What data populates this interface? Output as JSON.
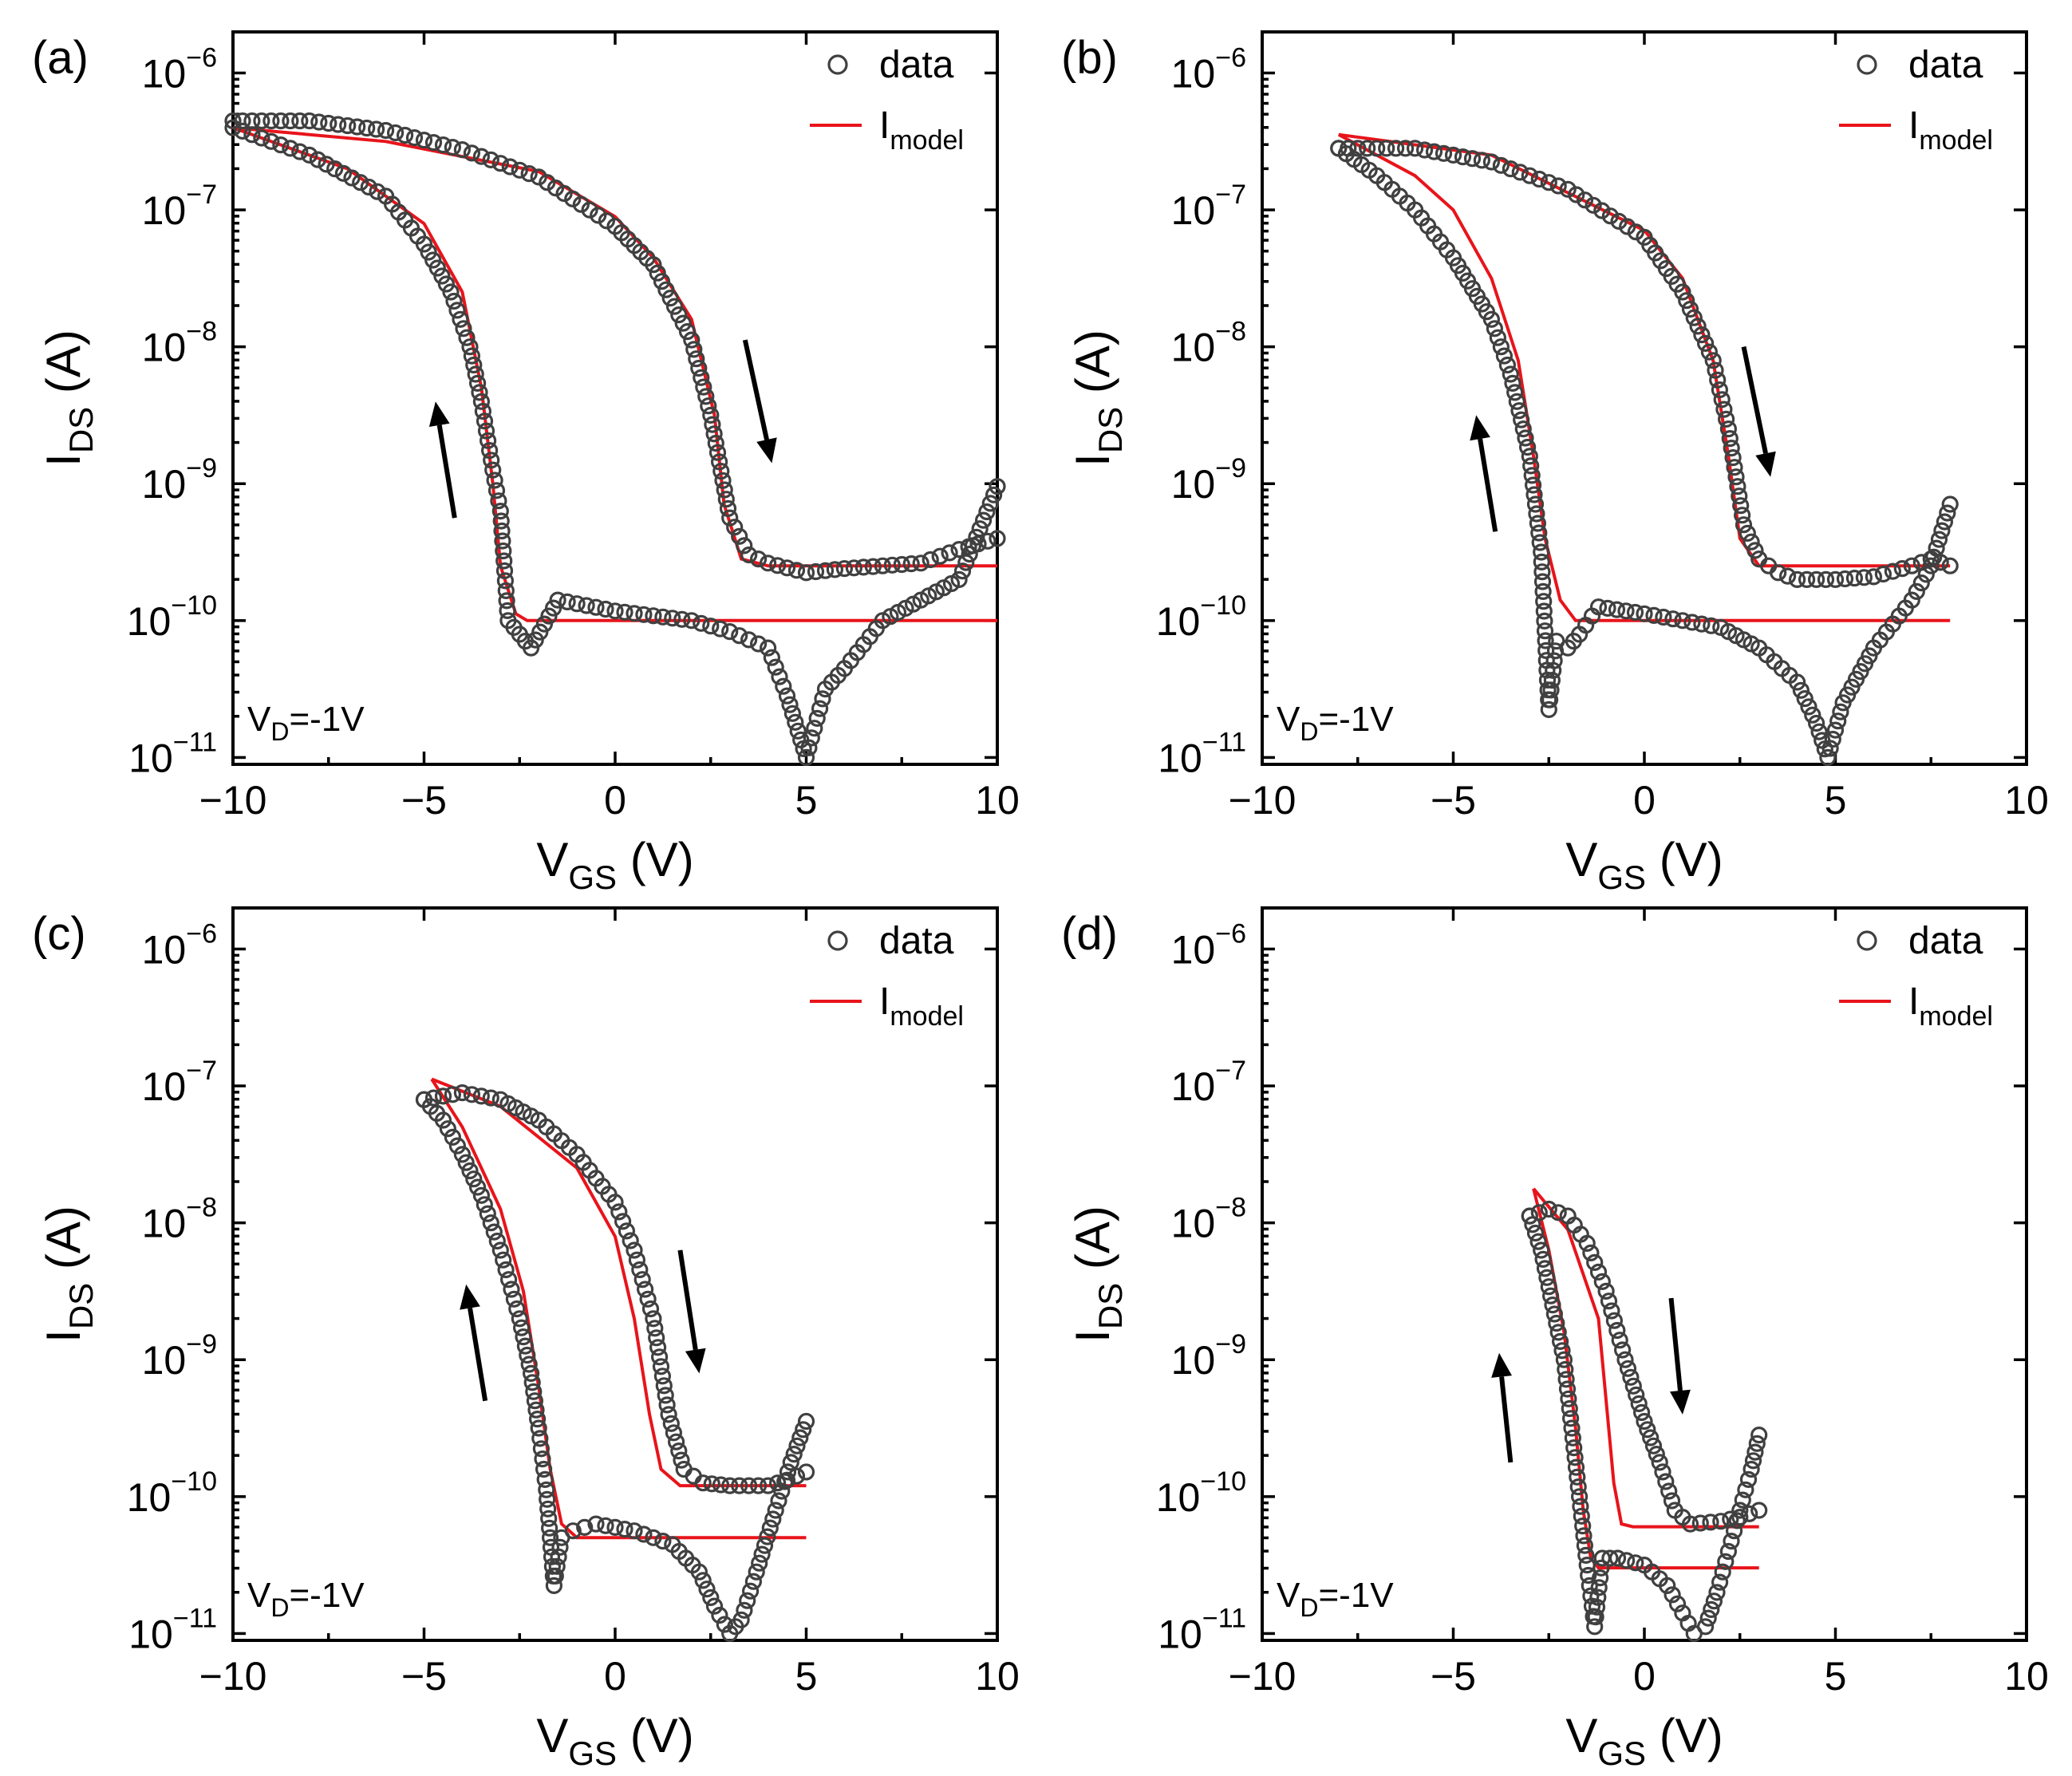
{
  "figure": {
    "background": "#ffffff"
  },
  "chart_data": [
    {
      "panel": "(a)",
      "type": "scatter",
      "title": "",
      "xlabel": "V",
      "xlabel_sub": "GS",
      "xlabel_unit": " (V)",
      "ylabel": "I",
      "ylabel_sub": "DS",
      "ylabel_unit": " (A)",
      "xlim": [
        -10,
        10
      ],
      "ylim_log10": [
        -11.05,
        -5.7
      ],
      "x_ticks": [
        -10,
        -5,
        0,
        5,
        10
      ],
      "x_tick_labels": [
        "−10",
        "−5",
        "0",
        "5",
        "10"
      ],
      "y_tick_exponents": [
        -6,
        -7,
        -8,
        -9,
        -10,
        -11
      ],
      "y_tick_labels": [
        {
          "base": "10",
          "exp": "−6"
        },
        {
          "base": "10",
          "exp": "−7"
        },
        {
          "base": "10",
          "exp": "−8"
        },
        {
          "base": "10",
          "exp": "−9"
        },
        {
          "base": "10",
          "exp": "−10"
        },
        {
          "base": "10",
          "exp": "−11"
        }
      ],
      "annotation": {
        "text": "V",
        "sub": "D",
        "rest": "=-1V"
      },
      "legend": {
        "data": "data",
        "model": "I",
        "model_sub": "model",
        "placement": "top-right"
      },
      "colors": {
        "data": "#404040",
        "model": "#e8141b"
      },
      "arrows": [
        {
          "direction": "up",
          "from": [
            -4.2,
            -9.25
          ],
          "to": [
            -4.7,
            -8.4
          ]
        },
        {
          "direction": "down",
          "from": [
            3.4,
            -7.95
          ],
          "to": [
            4.1,
            -8.85
          ]
        }
      ],
      "series": [
        {
          "name": "data (forward sweep)",
          "style": "circle",
          "x": [
            -10,
            -8,
            -6,
            -4,
            -2,
            0,
            1,
            2,
            2.5,
            3,
            3.5,
            4,
            5,
            6,
            7,
            8,
            9,
            10
          ],
          "log10_y": [
            -6.35,
            -6.35,
            -6.42,
            -6.56,
            -6.76,
            -7.12,
            -7.4,
            -7.95,
            -8.5,
            -9.25,
            -9.52,
            -9.58,
            -9.65,
            -9.62,
            -9.6,
            -9.58,
            -9.48,
            -9.4
          ]
        },
        {
          "name": "data (backward sweep)",
          "style": "circle",
          "x": [
            -10,
            -8,
            -6,
            -5,
            -4.3,
            -3.8,
            -3.5,
            -3.2,
            -3.0,
            -2.8,
            -2.5,
            -2.2,
            -1.5,
            0,
            2,
            3,
            4,
            4.5,
            5,
            5.5,
            6,
            7,
            8,
            9,
            10
          ],
          "log10_y": [
            -6.4,
            -6.6,
            -6.9,
            -7.25,
            -7.6,
            -8.0,
            -8.4,
            -8.9,
            -9.2,
            -10.0,
            -10.1,
            -10.2,
            -9.85,
            -9.93,
            -10.0,
            -10.08,
            -10.2,
            -10.55,
            -11.0,
            -10.5,
            -10.35,
            -10.0,
            -9.85,
            -9.7,
            -9.02
          ]
        },
        {
          "name": "I model (forward)",
          "style": "line",
          "x": [
            -10,
            -6,
            -2,
            0,
            1,
            2,
            2.6,
            2.85,
            3.3,
            4,
            10
          ],
          "log10_y": [
            -6.4,
            -6.5,
            -6.72,
            -7.05,
            -7.35,
            -7.8,
            -8.5,
            -9.15,
            -9.55,
            -9.6,
            -9.6
          ]
        },
        {
          "name": "I model (backward)",
          "style": "line",
          "x": [
            -10,
            -7,
            -5,
            -4,
            -3.5,
            -3.2,
            -3.0,
            -2.6,
            -2.3,
            0,
            10
          ],
          "log10_y": [
            -6.4,
            -6.7,
            -7.1,
            -7.6,
            -8.3,
            -9.0,
            -9.6,
            -9.95,
            -10.0,
            -10.0,
            -10.0
          ]
        }
      ]
    },
    {
      "panel": "(b)",
      "type": "scatter",
      "title": "",
      "xlabel": "V",
      "xlabel_sub": "GS",
      "xlabel_unit": " (V)",
      "ylabel": "I",
      "ylabel_sub": "DS",
      "ylabel_unit": " (A)",
      "xlim": [
        -10,
        10
      ],
      "ylim_log10": [
        -11.05,
        -5.7
      ],
      "x_ticks": [
        -10,
        -5,
        0,
        5,
        10
      ],
      "x_tick_labels": [
        "−10",
        "−5",
        "0",
        "5",
        "10"
      ],
      "y_tick_exponents": [
        -6,
        -7,
        -8,
        -9,
        -10,
        -11
      ],
      "y_tick_labels": [
        {
          "base": "10",
          "exp": "−6"
        },
        {
          "base": "10",
          "exp": "−7"
        },
        {
          "base": "10",
          "exp": "−8"
        },
        {
          "base": "10",
          "exp": "−9"
        },
        {
          "base": "10",
          "exp": "−10"
        },
        {
          "base": "10",
          "exp": "−11"
        }
      ],
      "annotation": {
        "text": "V",
        "sub": "D",
        "rest": "=-1V"
      },
      "legend": {
        "data": "data",
        "model": "I",
        "model_sub": "model",
        "placement": "top-right"
      },
      "colors": {
        "data": "#404040",
        "model": "#e8141b"
      },
      "arrows": [
        {
          "direction": "up",
          "from": [
            -3.9,
            -9.35
          ],
          "to": [
            -4.4,
            -8.5
          ]
        },
        {
          "direction": "down",
          "from": [
            2.6,
            -8.0
          ],
          "to": [
            3.3,
            -8.95
          ]
        }
      ],
      "series": [
        {
          "name": "data (forward sweep)",
          "style": "circle",
          "x": [
            -8,
            -6,
            -4,
            -2,
            0,
            1,
            1.8,
            2.2,
            2.6,
            3,
            3.5,
            4,
            5,
            6,
            7,
            7.5,
            8
          ],
          "log10_y": [
            -6.55,
            -6.55,
            -6.65,
            -6.85,
            -7.2,
            -7.6,
            -8.1,
            -8.6,
            -9.3,
            -9.55,
            -9.65,
            -9.7,
            -9.7,
            -9.68,
            -9.6,
            -9.55,
            -9.6
          ]
        },
        {
          "name": "data (backward sweep)",
          "style": "circle",
          "x": [
            -8,
            -7,
            -6,
            -5,
            -4,
            -3.5,
            -3.0,
            -2.7,
            -2.5,
            -2.3,
            -2.0,
            -1.7,
            -1.2,
            0,
            2,
            3,
            4,
            4.5,
            4.8,
            5.2,
            6,
            7,
            7.5,
            8
          ],
          "log10_y": [
            -6.55,
            -6.75,
            -7.0,
            -7.35,
            -7.8,
            -8.2,
            -8.8,
            -9.5,
            -10.65,
            -10.15,
            -10.2,
            -10.1,
            -9.9,
            -9.95,
            -10.05,
            -10.2,
            -10.45,
            -10.75,
            -11.0,
            -10.6,
            -10.2,
            -9.85,
            -9.6,
            -9.15
          ]
        },
        {
          "name": "I model (forward)",
          "style": "line",
          "x": [
            -8,
            -4,
            0,
            1,
            1.8,
            2.2,
            2.5,
            3,
            8
          ],
          "log10_y": [
            -6.45,
            -6.6,
            -7.15,
            -7.5,
            -8.1,
            -8.8,
            -9.4,
            -9.6,
            -9.6
          ]
        },
        {
          "name": "I model (backward)",
          "style": "line",
          "x": [
            -8,
            -6,
            -5,
            -4,
            -3.3,
            -2.9,
            -2.6,
            -2.2,
            -1.8,
            0,
            8
          ],
          "log10_y": [
            -6.45,
            -6.75,
            -7.0,
            -7.5,
            -8.1,
            -8.8,
            -9.4,
            -9.85,
            -10.0,
            -10.0,
            -10.0
          ]
        }
      ]
    },
    {
      "panel": "(c)",
      "type": "scatter",
      "title": "",
      "xlabel": "V",
      "xlabel_sub": "GS",
      "xlabel_unit": " (V)",
      "ylabel": "I",
      "ylabel_sub": "DS",
      "ylabel_unit": " (A)",
      "xlim": [
        -10,
        10
      ],
      "ylim_log10": [
        -11.05,
        -5.7
      ],
      "x_ticks": [
        -10,
        -5,
        0,
        5,
        10
      ],
      "x_tick_labels": [
        "−10",
        "−5",
        "0",
        "5",
        "10"
      ],
      "y_tick_exponents": [
        -6,
        -7,
        -8,
        -9,
        -10,
        -11
      ],
      "y_tick_labels": [
        {
          "base": "10",
          "exp": "−6"
        },
        {
          "base": "10",
          "exp": "−7"
        },
        {
          "base": "10",
          "exp": "−8"
        },
        {
          "base": "10",
          "exp": "−9"
        },
        {
          "base": "10",
          "exp": "−10"
        },
        {
          "base": "10",
          "exp": "−11"
        }
      ],
      "annotation": {
        "text": "V",
        "sub": "D",
        "rest": "=-1V"
      },
      "legend": {
        "data": "data",
        "model": "I",
        "model_sub": "model",
        "placement": "top-right"
      },
      "colors": {
        "data": "#404040",
        "model": "#e8141b"
      },
      "arrows": [
        {
          "direction": "up",
          "from": [
            -3.4,
            -9.3
          ],
          "to": [
            -3.9,
            -8.45
          ]
        },
        {
          "direction": "down",
          "from": [
            1.7,
            -8.2
          ],
          "to": [
            2.2,
            -9.1
          ]
        }
      ],
      "series": [
        {
          "name": "data (forward sweep)",
          "style": "circle",
          "x": [
            -5,
            -4,
            -3,
            -2,
            -1,
            0,
            0.5,
            1,
            1.4,
            1.8,
            2.3,
            3,
            4,
            4.5,
            5
          ],
          "log10_y": [
            -7.1,
            -7.05,
            -7.1,
            -7.25,
            -7.5,
            -7.85,
            -8.2,
            -8.7,
            -9.4,
            -9.8,
            -9.9,
            -9.92,
            -9.92,
            -9.88,
            -9.82
          ]
        },
        {
          "name": "data (backward sweep)",
          "style": "circle",
          "x": [
            -5,
            -4.5,
            -4,
            -3.5,
            -3,
            -2.5,
            -2.2,
            -2.0,
            -1.8,
            -1.6,
            -1.4,
            -1.1,
            -0.5,
            0.5,
            1.5,
            2.2,
            2.6,
            3.0,
            3.3,
            3.7,
            4.2,
            4.6,
            5
          ],
          "log10_y": [
            -7.1,
            -7.25,
            -7.5,
            -7.8,
            -8.2,
            -8.7,
            -9.1,
            -9.5,
            -9.95,
            -10.65,
            -10.3,
            -10.25,
            -10.2,
            -10.25,
            -10.35,
            -10.55,
            -10.8,
            -11.0,
            -10.9,
            -10.55,
            -10.1,
            -9.75,
            -9.45
          ]
        },
        {
          "name": "I model (forward)",
          "style": "line",
          "x": [
            -4.8,
            -3,
            -1,
            0,
            0.5,
            0.9,
            1.2,
            1.7,
            5
          ],
          "log10_y": [
            -6.95,
            -7.15,
            -7.6,
            -8.1,
            -8.7,
            -9.4,
            -9.8,
            -9.92,
            -9.92
          ]
        },
        {
          "name": "I model (backward)",
          "style": "line",
          "x": [
            -4.8,
            -4,
            -3,
            -2.4,
            -2.0,
            -1.7,
            -1.4,
            -1.0,
            0,
            5
          ],
          "log10_y": [
            -6.95,
            -7.3,
            -7.9,
            -8.5,
            -9.2,
            -9.8,
            -10.2,
            -10.3,
            -10.3,
            -10.3
          ]
        }
      ]
    },
    {
      "panel": "(d)",
      "type": "scatter",
      "title": "",
      "xlabel": "V",
      "xlabel_sub": "GS",
      "xlabel_unit": " (V)",
      "ylabel": "I",
      "ylabel_sub": "DS",
      "ylabel_unit": " (A)",
      "xlim": [
        -10,
        10
      ],
      "ylim_log10": [
        -11.05,
        -5.7
      ],
      "x_ticks": [
        -10,
        -5,
        0,
        5,
        10
      ],
      "x_tick_labels": [
        "−10",
        "−5",
        "0",
        "5",
        "10"
      ],
      "y_tick_exponents": [
        -6,
        -7,
        -8,
        -9,
        -10,
        -11
      ],
      "y_tick_labels": [
        {
          "base": "10",
          "exp": "−6"
        },
        {
          "base": "10",
          "exp": "−7"
        },
        {
          "base": "10",
          "exp": "−8"
        },
        {
          "base": "10",
          "exp": "−9"
        },
        {
          "base": "10",
          "exp": "−10"
        },
        {
          "base": "10",
          "exp": "−11"
        }
      ],
      "annotation": {
        "text": "V",
        "sub": "D",
        "rest": "=-1V"
      },
      "legend": {
        "data": "data",
        "model": "I",
        "model_sub": "model",
        "placement": "top-right"
      },
      "colors": {
        "data": "#404040",
        "model": "#e8141b"
      },
      "arrows": [
        {
          "direction": "up",
          "from": [
            -3.5,
            -9.75
          ],
          "to": [
            -3.8,
            -8.95
          ]
        },
        {
          "direction": "down",
          "from": [
            0.7,
            -8.55
          ],
          "to": [
            1.0,
            -9.4
          ]
        }
      ],
      "series": [
        {
          "name": "data (forward sweep)",
          "style": "circle",
          "x": [
            -3,
            -2.5,
            -2,
            -1.5,
            -1,
            -0.5,
            0,
            0.4,
            0.8,
            1.2,
            2,
            2.5,
            3
          ],
          "log10_y": [
            -7.95,
            -7.9,
            -7.95,
            -8.15,
            -8.5,
            -9.0,
            -9.45,
            -9.75,
            -10.1,
            -10.2,
            -10.18,
            -10.15,
            -10.1
          ]
        },
        {
          "name": "data (backward sweep)",
          "style": "circle",
          "x": [
            -3,
            -2.7,
            -2.4,
            -2.1,
            -1.9,
            -1.7,
            -1.5,
            -1.3,
            -1.1,
            -0.7,
            0,
            0.6,
            1.0,
            1.3,
            1.6,
            1.9,
            2.2,
            2.5,
            2.8,
            3
          ],
          "log10_y": [
            -7.95,
            -8.2,
            -8.6,
            -9.0,
            -9.5,
            -10.0,
            -10.5,
            -10.95,
            -10.45,
            -10.45,
            -10.5,
            -10.65,
            -10.85,
            -11.0,
            -10.95,
            -10.7,
            -10.4,
            -10.1,
            -9.8,
            -9.55
          ]
        },
        {
          "name": "I model (forward)",
          "style": "line",
          "x": [
            -2.9,
            -2,
            -1.2,
            -1.0,
            -0.8,
            -0.6,
            -0.3,
            0,
            3
          ],
          "log10_y": [
            -7.75,
            -8.05,
            -8.7,
            -9.3,
            -9.9,
            -10.2,
            -10.22,
            -10.22,
            -10.22
          ]
        },
        {
          "name": "I model (backward)",
          "style": "line",
          "x": [
            -2.9,
            -2.5,
            -2.1,
            -1.8,
            -1.6,
            -1.4,
            -1.2,
            -0.8,
            0,
            3
          ],
          "log10_y": [
            -7.75,
            -8.2,
            -8.8,
            -9.5,
            -10.1,
            -10.45,
            -10.52,
            -10.52,
            -10.52,
            -10.52
          ]
        }
      ]
    }
  ]
}
